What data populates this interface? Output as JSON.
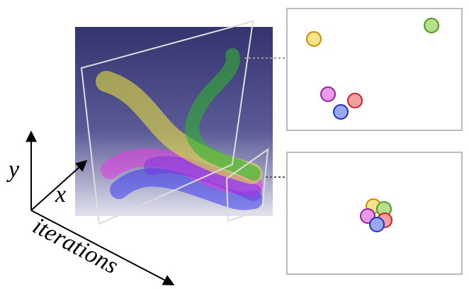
{
  "axes": {
    "y": "y",
    "x": "x",
    "iterations": "iterations"
  }
}
